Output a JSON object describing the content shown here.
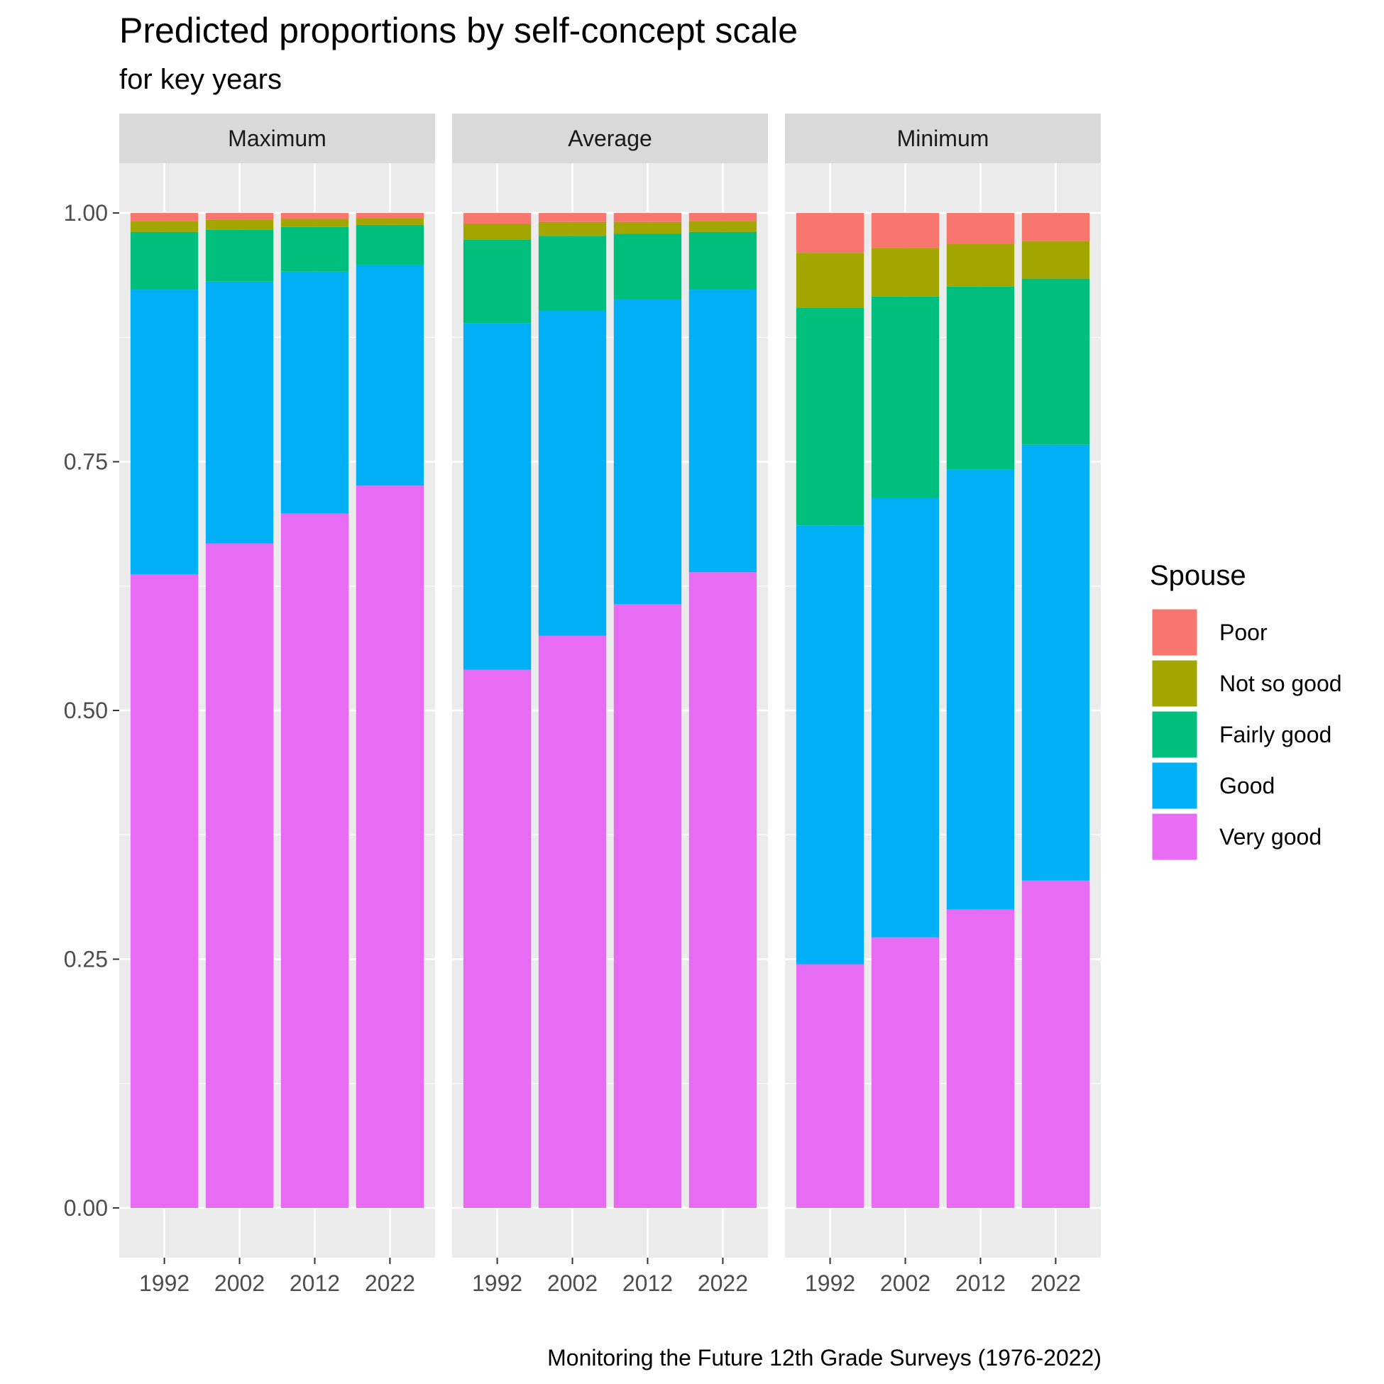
{
  "title": "Predicted proportions by self-concept scale",
  "subtitle": "for key years",
  "caption": "Monitoring the Future 12th Grade Surveys (1976-2022)",
  "colors": {
    "Poor": "#F8766D",
    "Not so good": "#A3A500",
    "Fairly good": "#00BF7D",
    "Good": "#00B0F6",
    "Very good": "#E76BF3",
    "panel_bg": "#EBEBEB",
    "strip_bg": "#D9D9D9",
    "grid": "#FFFFFF"
  },
  "chart_data": {
    "type": "bar",
    "stacked": true,
    "facets": [
      "Maximum",
      "Average",
      "Minimum"
    ],
    "categories": [
      "1992",
      "2002",
      "2012",
      "2022"
    ],
    "ylim": [
      -0.05,
      1.05
    ],
    "yticks": [
      "0.00",
      "0.25",
      "0.50",
      "0.75",
      "1.00"
    ],
    "ytick_values": [
      0,
      0.25,
      0.5,
      0.75,
      1.0
    ],
    "legend_title": "Spouse",
    "legend_position": "right",
    "legend_order": [
      "Poor",
      "Not so good",
      "Fairly good",
      "Good",
      "Very good"
    ],
    "stack_order_bottom_to_top": [
      "Very good",
      "Good",
      "Fairly good",
      "Not so good",
      "Poor"
    ],
    "panels": [
      {
        "facet": "Maximum",
        "series": [
          {
            "name": "Very good",
            "values": [
              0.637,
              0.668,
              0.698,
              0.726
            ]
          },
          {
            "name": "Good",
            "values": [
              0.286,
              0.263,
              0.243,
              0.222
            ]
          },
          {
            "name": "Fairly good",
            "values": [
              0.058,
              0.052,
              0.045,
              0.04
            ]
          },
          {
            "name": "Not so good",
            "values": [
              0.011,
              0.01,
              0.008,
              0.007
            ]
          },
          {
            "name": "Poor",
            "values": [
              0.008,
              0.007,
              0.006,
              0.005
            ]
          }
        ]
      },
      {
        "facet": "Average",
        "series": [
          {
            "name": "Very good",
            "values": [
              0.541,
              0.575,
              0.607,
              0.639
            ]
          },
          {
            "name": "Good",
            "values": [
              0.348,
              0.327,
              0.306,
              0.284
            ]
          },
          {
            "name": "Fairly good",
            "values": [
              0.084,
              0.075,
              0.066,
              0.058
            ]
          },
          {
            "name": "Not so good",
            "values": [
              0.016,
              0.014,
              0.012,
              0.011
            ]
          },
          {
            "name": "Poor",
            "values": [
              0.011,
              0.009,
              0.009,
              0.008
            ]
          }
        ]
      },
      {
        "facet": "Minimum",
        "series": [
          {
            "name": "Very good",
            "values": [
              0.245,
              0.272,
              0.3,
              0.329
            ]
          },
          {
            "name": "Good",
            "values": [
              0.441,
              0.442,
              0.442,
              0.438
            ]
          },
          {
            "name": "Fairly good",
            "values": [
              0.219,
              0.202,
              0.184,
              0.167
            ]
          },
          {
            "name": "Not so good",
            "values": [
              0.055,
              0.049,
              0.043,
              0.038
            ]
          },
          {
            "name": "Poor",
            "values": [
              0.04,
              0.035,
              0.031,
              0.028
            ]
          }
        ]
      }
    ]
  }
}
